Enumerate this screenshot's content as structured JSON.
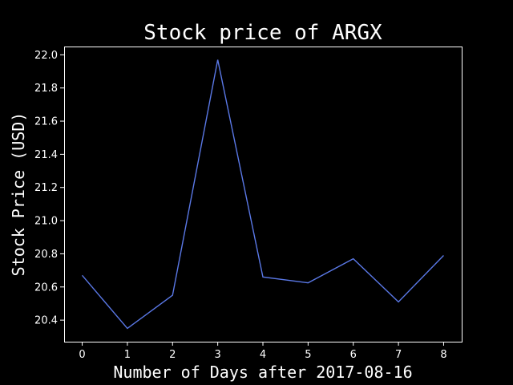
{
  "chart_data": {
    "type": "line",
    "title": "Stock price of ARGX",
    "xlabel": "Number of Days after 2017-08-16",
    "ylabel": "Stock Price (USD)",
    "x": [
      0,
      1,
      2,
      3,
      4,
      5,
      6,
      7,
      8
    ],
    "x_tick_labels": [
      "0",
      "1",
      "2",
      "3",
      "4",
      "5",
      "6",
      "7",
      "8"
    ],
    "y_tick_values": [
      20.4,
      20.6,
      20.8,
      21.0,
      21.2,
      21.4,
      21.6,
      21.8,
      22.0
    ],
    "y_tick_labels": [
      "20.4",
      "20.6",
      "20.8",
      "21.0",
      "21.2",
      "21.4",
      "21.6",
      "21.8",
      "22.0"
    ],
    "xlim": [
      -0.4,
      8.4
    ],
    "ylim": [
      20.27,
      22.05
    ],
    "grid": false,
    "series": [
      {
        "values": [
          20.67,
          20.35,
          20.55,
          21.97,
          20.66,
          20.625,
          20.77,
          20.51,
          20.79
        ],
        "color": "#5a78e6"
      }
    ],
    "background_color": "#000000",
    "foreground_color": "#ffffff"
  }
}
